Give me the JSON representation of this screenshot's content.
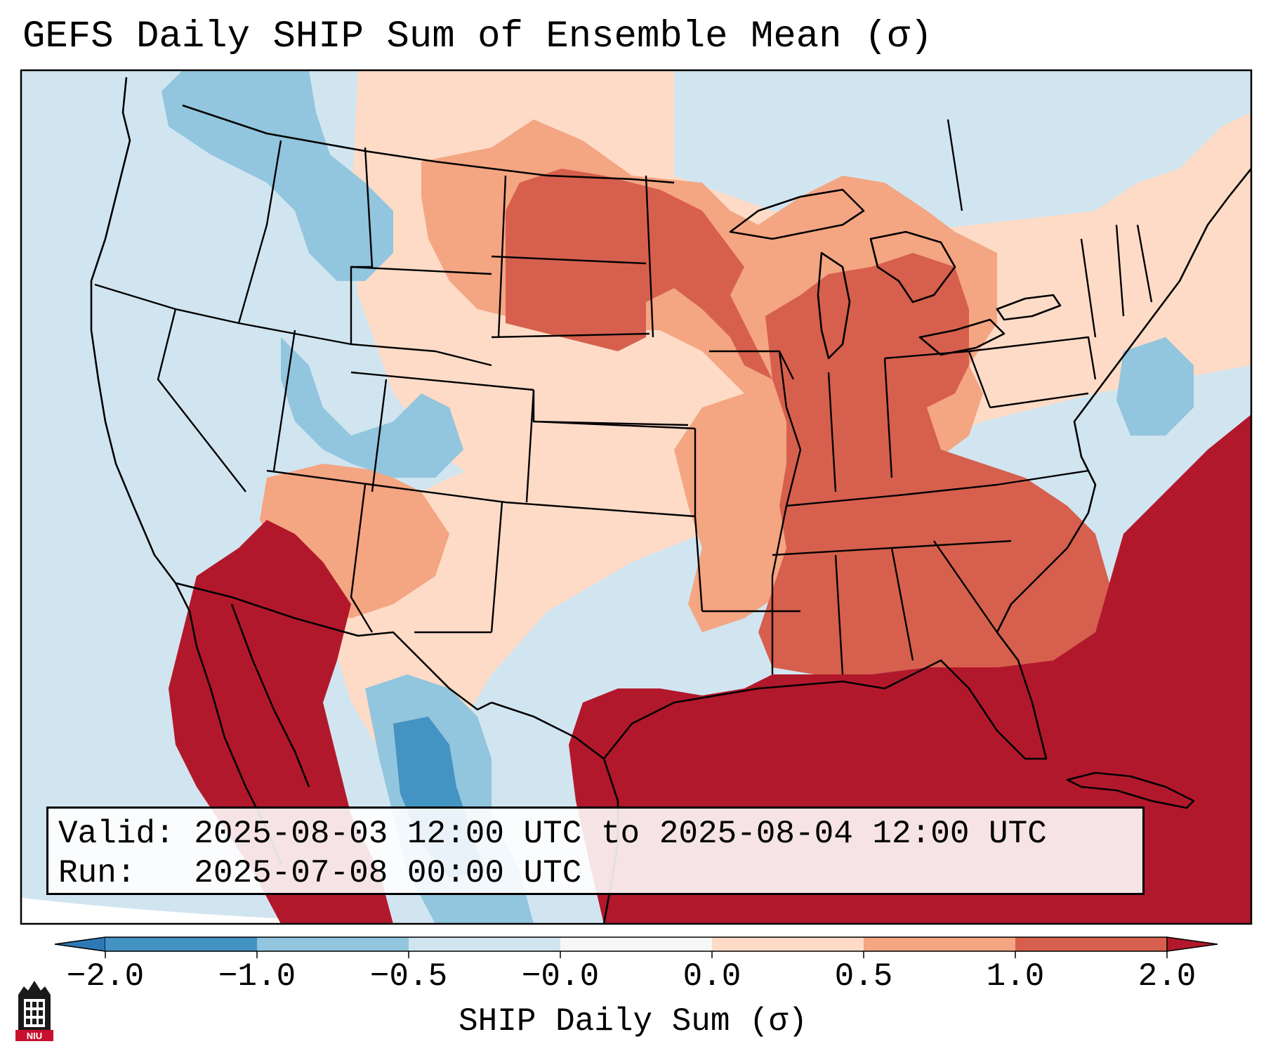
{
  "title": "GEFS Daily SHIP Sum of Ensemble Mean (σ)",
  "info": {
    "valid_label": "Valid:",
    "valid_value": "2025-08-03 12:00 UTC to 2025-08-04 12:00 UTC",
    "run_label": "Run:  ",
    "run_value": "2025-07-08 00:00 UTC"
  },
  "colorbar": {
    "label": "SHIP Daily Sum (σ)",
    "ticks": [
      "−2.0",
      "−1.0",
      "−0.5",
      "−0.0",
      "0.0",
      "0.5",
      "1.0",
      "2.0"
    ],
    "colors": [
      "#2f78b8",
      "#4393c3",
      "#92c5de",
      "#d1e5f0",
      "#f7f7f7",
      "#fddbc7",
      "#f4a582",
      "#d6604d",
      "#b2182b"
    ]
  },
  "legend_colors": {
    "very_low": "#4393c3",
    "low": "#92c5de",
    "slightly_low": "#d1e5f0",
    "slightly_high": "#fddbc7",
    "high": "#f4a582",
    "very_high": "#d6604d",
    "extreme": "#b2182b"
  },
  "logo": {
    "text": "NIU",
    "icon": "niu-tower-logo-icon"
  }
}
